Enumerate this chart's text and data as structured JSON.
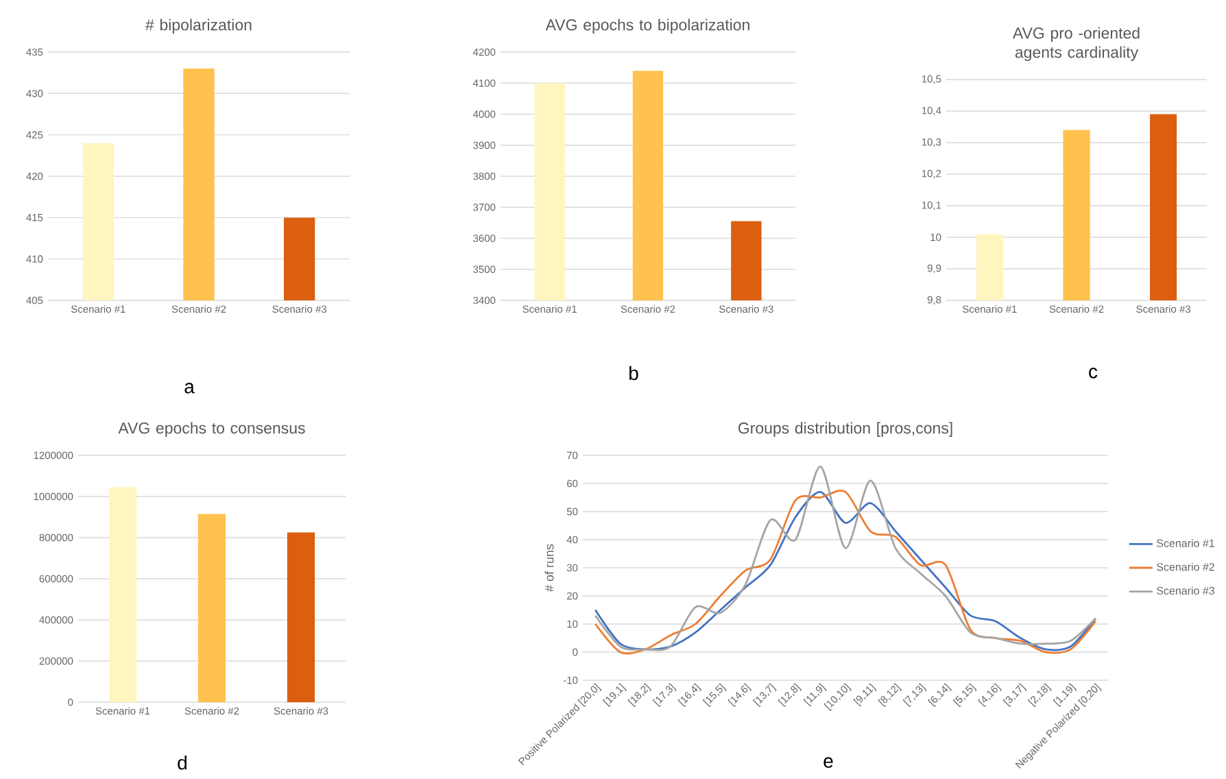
{
  "chart_data": [
    {
      "type": "bar",
      "title": "# bipolarization",
      "categories": [
        "Scenario #1",
        "Scenario #2",
        "Scenario #3"
      ],
      "values": [
        424,
        433,
        415
      ],
      "colors": [
        "#fff5bf",
        "#ffc24f",
        "#db5f0f"
      ],
      "ylim": [
        405,
        435
      ],
      "yticks": [
        405,
        410,
        415,
        420,
        425,
        430,
        435
      ],
      "grid": "y",
      "annotations": [
        "a"
      ]
    },
    {
      "type": "bar",
      "title": "AVG epochs to bipolarization",
      "categories": [
        "Scenario #1",
        "Scenario #2",
        "Scenario #3"
      ],
      "values": [
        4100,
        4140,
        3655
      ],
      "colors": [
        "#fff5bf",
        "#ffc24f",
        "#db5f0f"
      ],
      "ylim": [
        3400,
        4200
      ],
      "yticks": [
        3400,
        3500,
        3600,
        3700,
        3800,
        3900,
        4000,
        4100,
        4200
      ],
      "grid": "y",
      "annotations": [
        "b"
      ]
    },
    {
      "type": "bar",
      "title": "AVG pro -oriented agents cardinality",
      "categories": [
        "Scenario #1",
        "Scenario #2",
        "Scenario #3"
      ],
      "values": [
        10.01,
        10.34,
        10.39
      ],
      "colors": [
        "#fff5bf",
        "#ffc24f",
        "#db5f0f"
      ],
      "ylim": [
        9.8,
        10.5
      ],
      "yticks": [
        {
          "value": 9.8,
          "label": "9,8"
        },
        {
          "value": 9.9,
          "label": "9,9"
        },
        10,
        {
          "value": 10.1,
          "label": "10,1"
        },
        {
          "value": 10.2,
          "label": "10,2"
        },
        {
          "value": 10.3,
          "label": "10,3"
        },
        {
          "value": 10.4,
          "label": "10,4"
        },
        {
          "value": 10.5,
          "label": "10,5"
        }
      ],
      "grid": "y",
      "annotations": [
        "c"
      ]
    },
    {
      "type": "bar",
      "title": "AVG epochs to consensus",
      "categories": [
        "Scenario #1",
        "Scenario #2",
        "Scenario #3"
      ],
      "values": [
        1045000,
        915000,
        825000
      ],
      "colors": [
        "#fff5bf",
        "#ffc24f",
        "#db5f0f"
      ],
      "ylim": [
        0,
        1200000
      ],
      "yticks": [
        0,
        200000,
        400000,
        600000,
        800000,
        1000000,
        1200000
      ],
      "grid": "y",
      "annotations": [
        "d"
      ]
    },
    {
      "type": "line",
      "title": "Groups distribution [pros,cons]",
      "ylabel": "# of runs",
      "categories": [
        "Positive Polarized [20,0]",
        "[19,1]",
        "[18,2]",
        "[17,3]",
        "[16,4]",
        "[15,5]",
        "[14,6]",
        "[13,7]",
        "[12,8]",
        "[11,9]",
        "[10,10]",
        "[9,11]",
        "[8,12]",
        "[7,13]",
        "[6,14]",
        "[5,15]",
        "[4,16]",
        "[3,17]",
        "[2,18]",
        "[1,19]",
        "Negative Polarized [0,20]"
      ],
      "series": [
        {
          "name": "Scenario #1",
          "color": "#4472c4",
          "values": [
            15,
            3,
            1,
            2,
            7,
            15,
            23,
            31,
            48,
            57,
            46,
            53,
            43,
            33,
            23,
            13,
            11,
            5,
            1,
            2,
            12
          ]
        },
        {
          "name": "Scenario #2",
          "color": "#ed7d31",
          "values": [
            10,
            0,
            1,
            6,
            10,
            20,
            29,
            33,
            54,
            55,
            57,
            43,
            41,
            31,
            31,
            8,
            5,
            4,
            0,
            1,
            11
          ]
        },
        {
          "name": "Scenario #3",
          "color": "#a5a5a5",
          "values": [
            13,
            2,
            1,
            2,
            16,
            14,
            24,
            47,
            40,
            66,
            37,
            61,
            37,
            28,
            20,
            7,
            5,
            3,
            3,
            4,
            12
          ]
        }
      ],
      "ylim": [
        -10,
        70
      ],
      "yticks": [
        -10,
        0,
        10,
        20,
        30,
        40,
        50,
        60,
        70
      ],
      "grid": "y",
      "legend": "right",
      "annotations": [
        "e"
      ]
    }
  ]
}
